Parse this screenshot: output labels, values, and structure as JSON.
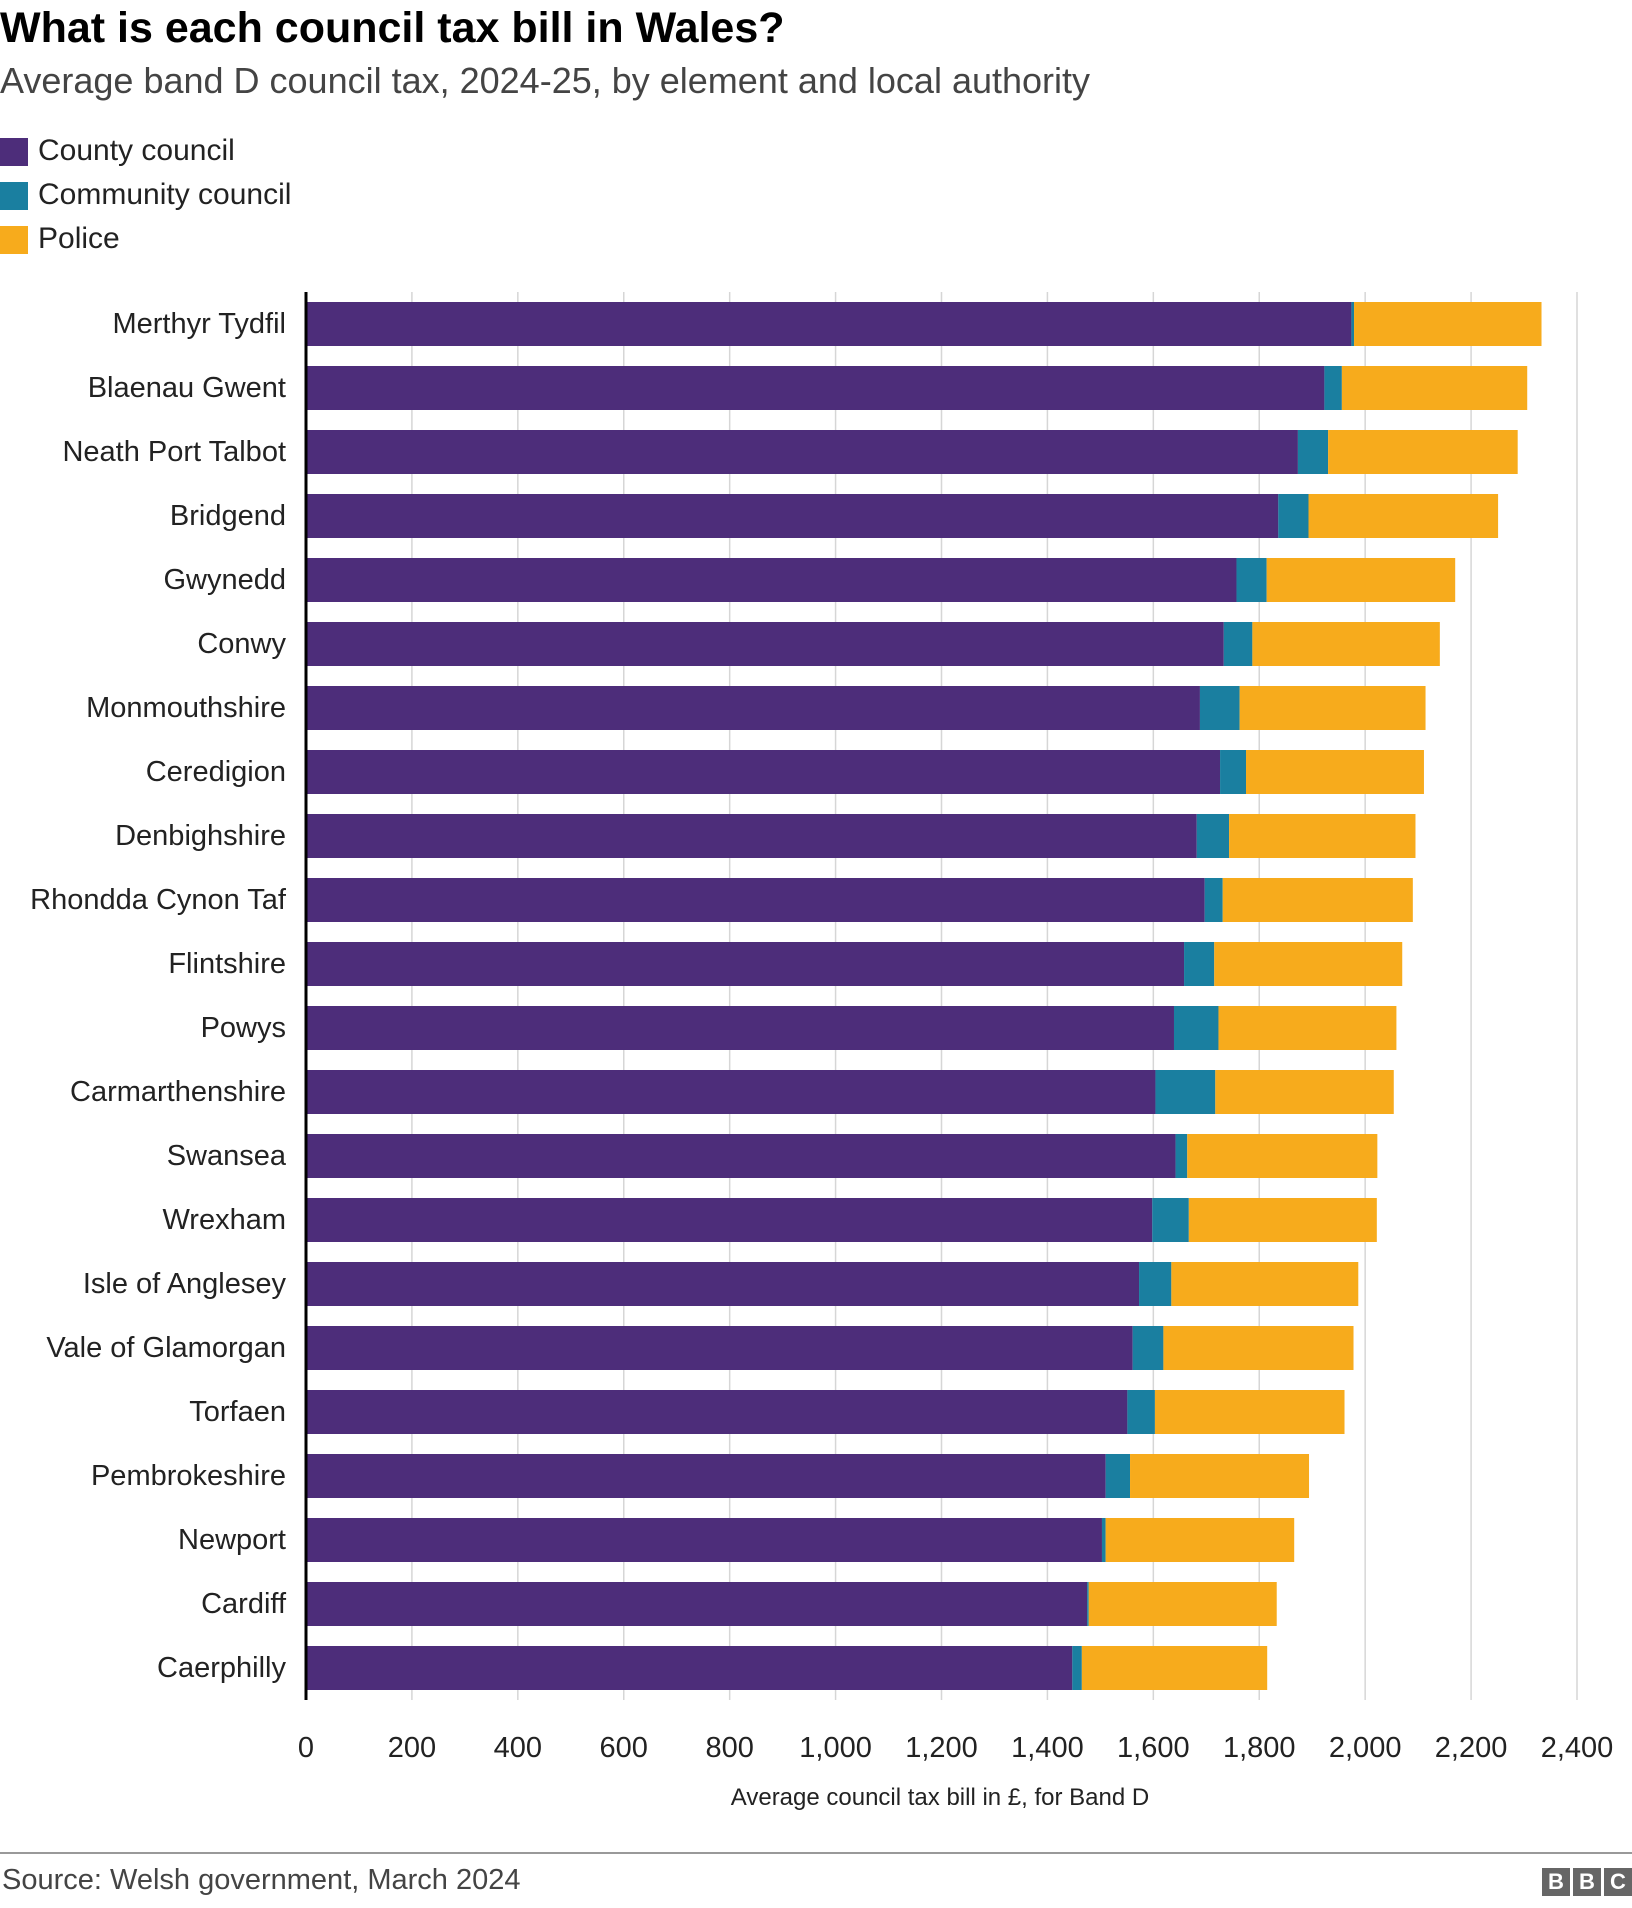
{
  "title": "What is each council tax bill in Wales?",
  "subtitle": "Average band D council tax, 2024-25, by element and local authority",
  "source": "Source: Welsh government, March 2024",
  "logo": [
    "B",
    "B",
    "C"
  ],
  "colors": {
    "county": "#4d2d7a",
    "community": "#1a7fa0",
    "police": "#f7ab1c",
    "grid": "#d6d6d6",
    "axis": "#000000"
  },
  "chart_data": {
    "type": "bar",
    "orientation": "horizontal",
    "stacked": true,
    "title": "What is each council tax bill in Wales?",
    "xlabel": "Average council tax bill in £, for Band D",
    "ylabel": "",
    "xlim": [
      0,
      2400
    ],
    "xticks": [
      0,
      200,
      400,
      600,
      800,
      1000,
      1200,
      1400,
      1600,
      1800,
      2000,
      2200,
      2400
    ],
    "xtick_labels": [
      "0",
      "200",
      "400",
      "600",
      "800",
      "1,000",
      "1,200",
      "1,400",
      "1,600",
      "1,800",
      "2,000",
      "2,200",
      "2,400"
    ],
    "grid": true,
    "legend_position": "top-left",
    "categories": [
      "Merthyr Tydfil",
      "Blaenau Gwent",
      "Neath Port Talbot",
      "Bridgend",
      "Gwynedd",
      "Conwy",
      "Monmouthshire",
      "Ceredigion",
      "Denbighshire",
      "Rhondda Cynon Taf",
      "Flintshire",
      "Powys",
      "Carmarthenshire",
      "Swansea",
      "Wrexham",
      "Isle of Anglesey",
      "Vale of Glamorgan",
      "Torfaen",
      "Pembrokeshire",
      "Newport",
      "Cardiff",
      "Caerphilly"
    ],
    "series": [
      {
        "name": "County council",
        "key": "county",
        "values": [
          1974,
          1923,
          1873,
          1836,
          1757,
          1733,
          1688,
          1726,
          1682,
          1697,
          1658,
          1639,
          1604,
          1642,
          1598,
          1573,
          1561,
          1551,
          1510,
          1503,
          1475,
          1447
        ]
      },
      {
        "name": "Community council",
        "key": "community",
        "values": [
          5,
          33,
          57,
          57,
          57,
          54,
          75,
          49,
          61,
          34,
          57,
          84,
          113,
          22,
          69,
          61,
          58,
          52,
          46,
          7,
          3,
          18
        ]
      },
      {
        "name": "Police",
        "key": "police",
        "values": [
          354,
          350,
          358,
          358,
          356,
          354,
          351,
          336,
          352,
          359,
          355,
          336,
          337,
          359,
          355,
          353,
          359,
          358,
          338,
          356,
          355,
          350
        ]
      }
    ]
  }
}
